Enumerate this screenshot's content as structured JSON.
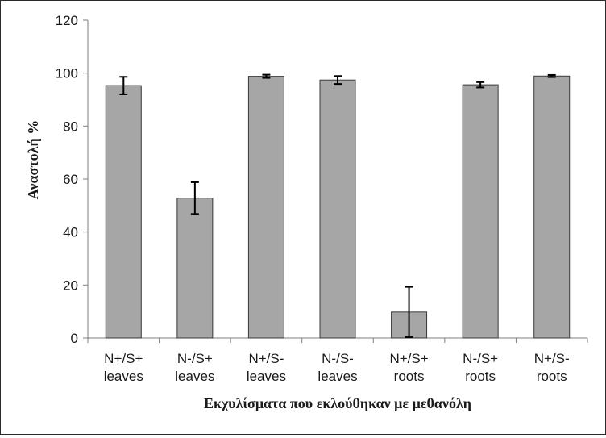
{
  "chart_data": {
    "type": "bar",
    "title": "",
    "xlabel": "Εκχυλίσματα που εκλούθηκαν με μεθανόλη",
    "ylabel": "Αναστολή %",
    "ylim": [
      0,
      120
    ],
    "yticks": [
      0,
      20,
      40,
      60,
      80,
      100,
      120
    ],
    "grid": false,
    "legend": "none",
    "bar_color": "#a6a6a6",
    "categories": [
      [
        "N+/S+",
        "leaves"
      ],
      [
        "N-/S+",
        "leaves"
      ],
      [
        "N+/S-",
        "leaves"
      ],
      [
        "N-/S-",
        "leaves"
      ],
      [
        "N+/S+",
        "roots"
      ],
      [
        "N-/S+",
        "roots"
      ],
      [
        "N+/S-",
        "roots"
      ]
    ],
    "values": [
      95.3,
      52.8,
      98.8,
      97.4,
      9.8,
      95.6,
      98.9
    ],
    "errors": [
      3.3,
      6.0,
      0.6,
      1.5,
      9.5,
      1.0,
      0.4
    ]
  }
}
